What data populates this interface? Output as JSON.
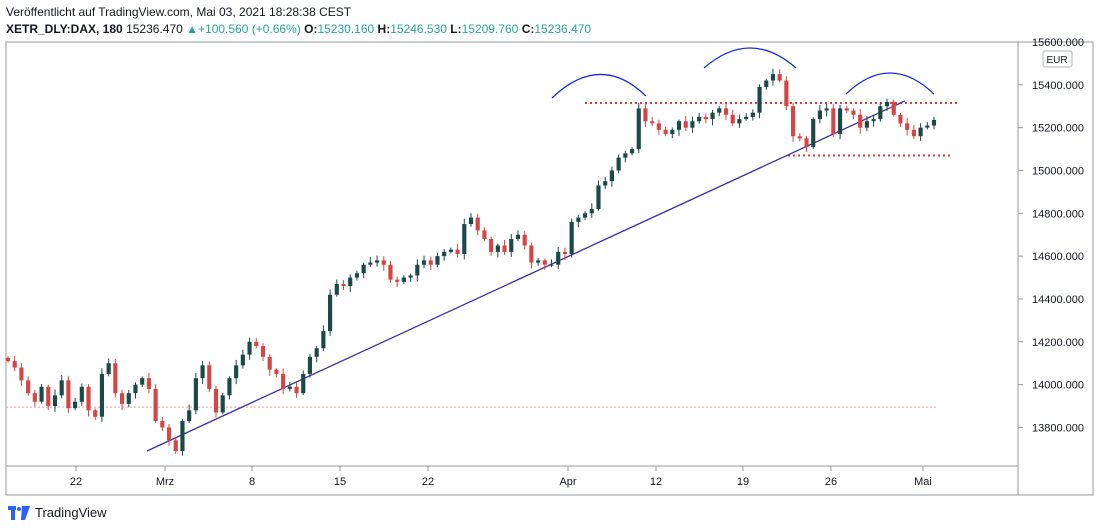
{
  "header": {
    "published": "Veröffentlicht auf TradingView.com, Mai 03, 2021 18:28:38 CEST",
    "symbol": "XETR_DLY:DAX, 180",
    "last": "15236.470",
    "change": "▲+100.560 (+0.66%)",
    "o_label": "O:",
    "o_value": "15230.160",
    "h_label": "H:",
    "h_value": "15246.530",
    "l_label": "L:",
    "l_value": "15209.760",
    "c_label": "C:",
    "c_value": "15236.470"
  },
  "footer": {
    "brand": "TradingView"
  },
  "colors": {
    "up": "#1b4a46",
    "down": "#d64545",
    "trend": "#3b2fa0",
    "arc": "#1a2bd6",
    "level": "#e53935",
    "baseline": "#ef9a9a"
  },
  "chart_data": {
    "type": "candlestick",
    "currency": "EUR",
    "ylim": [
      13620,
      15600
    ],
    "yticks": [
      "15600.000",
      "15400.000",
      "15200.000",
      "15000.000",
      "14800.000",
      "14600.000",
      "14400.000",
      "14200.000",
      "14000.000",
      "13800.000"
    ],
    "xticks": [
      "22",
      "Mrz",
      "8",
      "15",
      "22",
      "Apr",
      "12",
      "19",
      "26",
      "Mai"
    ],
    "closes": [
      14110,
      14080,
      14020,
      13960,
      13920,
      13990,
      13900,
      13950,
      14020,
      13890,
      13920,
      13990,
      13880,
      13850,
      14050,
      14100,
      13960,
      13910,
      13960,
      14000,
      14030,
      13980,
      13830,
      13800,
      13740,
      13690,
      13830,
      13880,
      14030,
      14090,
      13980,
      13870,
      13950,
      14030,
      14090,
      14140,
      14200,
      14180,
      14130,
      14070,
      14050,
      13980,
      13990,
      13960,
      14050,
      14130,
      14170,
      14250,
      14420,
      14470,
      14460,
      14500,
      14520,
      14560,
      14570,
      14580,
      14560,
      14490,
      14480,
      14500,
      14510,
      14560,
      14580,
      14560,
      14600,
      14620,
      14630,
      14610,
      14750,
      14780,
      14720,
      14680,
      14620,
      14650,
      14620,
      14680,
      14700,
      14650,
      14570,
      14580,
      14560,
      14560,
      14620,
      14610,
      14760,
      14780,
      14800,
      14820,
      14930,
      14950,
      15000,
      15060,
      15080,
      15100,
      15290,
      15230,
      15220,
      15190,
      15170,
      15190,
      15230,
      15200,
      15230,
      15250,
      15240,
      15270,
      15290,
      15260,
      15220,
      15240,
      15250,
      15270,
      15390,
      15420,
      15450,
      15420,
      15300,
      15160,
      15150,
      15110,
      15240,
      15280,
      15290,
      15170,
      15290,
      15280,
      15260,
      15200,
      15230,
      15240,
      15300,
      15320,
      15260,
      15220,
      15190,
      15160,
      15200,
      15210,
      15236
    ],
    "trendline": {
      "from": [
        "2021-02-26",
        13690
      ],
      "to": [
        "2021-04-30",
        15325
      ]
    },
    "resistance": 15315,
    "support": 15070,
    "baseline": 13895
  }
}
